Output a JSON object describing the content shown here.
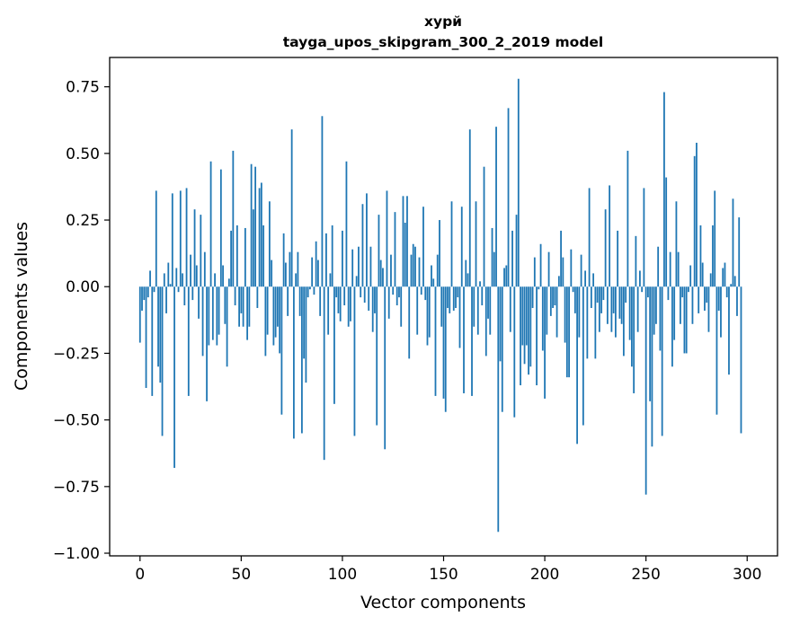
{
  "chart_data": {
    "type": "bar",
    "title": "хурй",
    "subtitle": "tayga_upos_skipgram_300_2_2019 model",
    "xlabel": "Vector components",
    "ylabel": "Components values",
    "xlim": [
      -15,
      315
    ],
    "ylim": [
      -1.01,
      0.86
    ],
    "xticks": [
      0,
      50,
      100,
      150,
      200,
      250,
      300
    ],
    "xtick_labels": [
      "0",
      "50",
      "100",
      "150",
      "200",
      "250",
      "300"
    ],
    "yticks": [
      0.75,
      0.5,
      0.25,
      0.0,
      -0.25,
      -0.5,
      -0.75,
      -1.0
    ],
    "ytick_labels": [
      "0.75",
      "0.50",
      "0.25",
      "0.00",
      "−0.25",
      "−0.50",
      "−0.75",
      "−1.00"
    ],
    "grid": false,
    "bar_color": "#1f77b4",
    "x": "0..299",
    "values": [
      -0.21,
      -0.09,
      -0.05,
      -0.38,
      -0.04,
      0.06,
      -0.41,
      -0.02,
      0.36,
      -0.3,
      -0.36,
      -0.56,
      0.05,
      -0.1,
      0.09,
      0.01,
      0.35,
      -0.68,
      0.07,
      -0.02,
      0.36,
      0.05,
      -0.07,
      0.37,
      -0.41,
      0.12,
      -0.05,
      0.29,
      0.08,
      -0.12,
      0.27,
      -0.26,
      0.13,
      -0.43,
      -0.22,
      0.47,
      -0.2,
      0.05,
      -0.22,
      -0.18,
      0.44,
      0.08,
      -0.14,
      -0.3,
      0.03,
      0.21,
      0.51,
      -0.07,
      0.23,
      -0.15,
      -0.1,
      -0.15,
      0.22,
      -0.2,
      -0.15,
      0.46,
      0.29,
      0.45,
      -0.08,
      0.37,
      0.39,
      0.23,
      -0.26,
      -0.18,
      0.32,
      0.1,
      -0.22,
      -0.19,
      -0.15,
      -0.25,
      -0.48,
      0.2,
      0.09,
      -0.11,
      0.13,
      0.59,
      -0.57,
      0.05,
      0.13,
      -0.11,
      -0.55,
      -0.27,
      -0.36,
      -0.04,
      -0.01,
      0.11,
      -0.03,
      0.17,
      0.1,
      -0.11,
      0.64,
      -0.65,
      0.2,
      -0.18,
      0.05,
      0.23,
      -0.44,
      -0.04,
      -0.1,
      -0.13,
      0.21,
      -0.07,
      0.47,
      -0.15,
      -0.13,
      0.14,
      -0.56,
      0.04,
      0.15,
      -0.04,
      0.31,
      -0.06,
      0.35,
      -0.09,
      0.15,
      -0.17,
      -0.1,
      -0.52,
      0.27,
      0.1,
      0.07,
      -0.61,
      0.36,
      -0.12,
      0.12,
      -0.03,
      0.28,
      -0.07,
      -0.04,
      -0.15,
      0.34,
      0.24,
      0.34,
      -0.27,
      0.12,
      0.16,
      0.15,
      -0.18,
      0.11,
      -0.03,
      0.3,
      -0.05,
      -0.22,
      -0.19,
      0.08,
      0.03,
      -0.41,
      0.12,
      0.25,
      -0.15,
      -0.42,
      -0.47,
      -0.08,
      -0.1,
      0.32,
      -0.09,
      -0.08,
      -0.04,
      -0.23,
      0.3,
      -0.4,
      0.1,
      0.05,
      0.59,
      -0.41,
      -0.15,
      0.32,
      -0.18,
      0.02,
      -0.07,
      0.45,
      -0.26,
      -0.12,
      -0.18,
      0.22,
      0.13,
      0.6,
      -0.92,
      -0.28,
      -0.47,
      0.07,
      0.08,
      0.67,
      -0.17,
      0.21,
      -0.49,
      0.27,
      0.78,
      -0.37,
      -0.22,
      -0.29,
      -0.22,
      -0.33,
      -0.3,
      -0.08,
      0.11,
      -0.37,
      -0.01,
      0.16,
      -0.24,
      -0.42,
      -0.18,
      0.13,
      -0.11,
      -0.08,
      -0.07,
      -0.19,
      0.04,
      0.21,
      0.11,
      -0.21,
      -0.34,
      -0.34,
      0.14,
      -0.02,
      -0.1,
      -0.59,
      -0.19,
      0.12,
      -0.52,
      0.06,
      -0.27,
      0.37,
      -0.08,
      0.05,
      -0.27,
      -0.06,
      -0.17,
      -0.1,
      -0.05,
      0.29,
      -0.14,
      0.38,
      -0.17,
      -0.1,
      -0.19,
      0.21,
      -0.12,
      -0.14,
      -0.26,
      -0.06,
      0.51,
      -0.2,
      -0.3,
      -0.4,
      0.19,
      -0.17,
      0.06,
      -0.02,
      0.37,
      -0.78,
      -0.04,
      -0.43,
      -0.6,
      -0.18,
      -0.14,
      0.15,
      -0.24,
      -0.56,
      0.73,
      0.41,
      -0.05,
      0.13,
      -0.3,
      -0.2,
      0.32,
      0.13,
      -0.14,
      -0.04,
      -0.25,
      -0.25,
      -0.02,
      0.08,
      -0.14,
      0.49,
      0.54,
      -0.1,
      0.23,
      0.09,
      -0.09,
      -0.06,
      -0.17,
      0.05,
      0.23,
      0.36,
      -0.48,
      -0.09,
      -0.19,
      0.07,
      0.09,
      -0.04,
      -0.33,
      0.01,
      0.33,
      0.04,
      -0.11,
      0.26,
      -0.55,
      0.0,
      0.0
    ]
  }
}
